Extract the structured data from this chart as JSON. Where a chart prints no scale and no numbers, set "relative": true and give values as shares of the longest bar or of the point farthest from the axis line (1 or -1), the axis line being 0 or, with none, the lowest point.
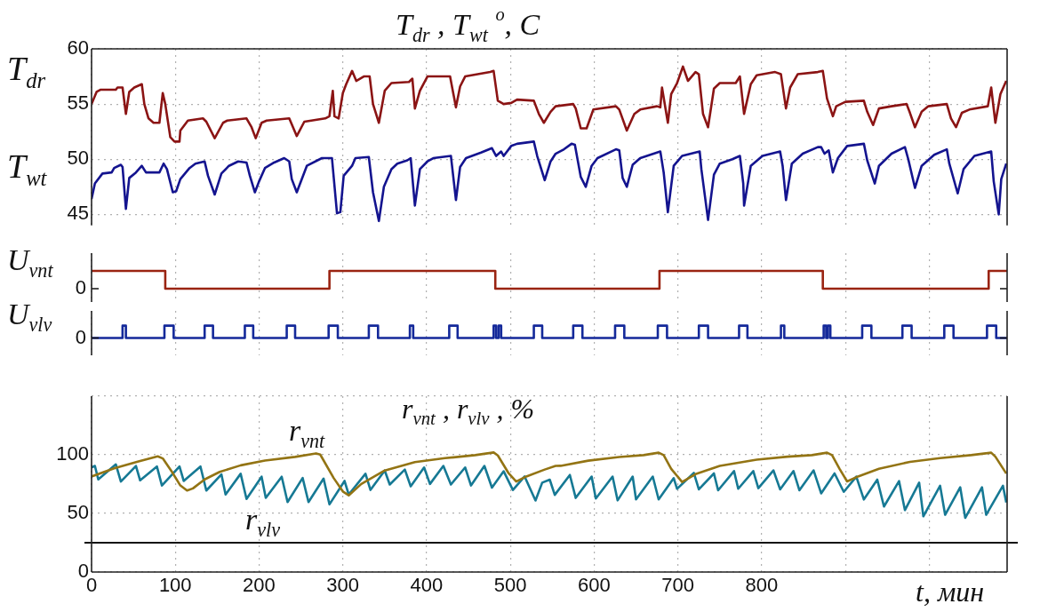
{
  "chart_data": [
    {
      "type": "line",
      "title": "T$_{dr}$ , T$_{wt}$ $^{o}$, C",
      "xlim": [
        0,
        1093
      ],
      "xticks": [
        0,
        100,
        200,
        300,
        400,
        500,
        600,
        700,
        800,
        900,
        1000
      ],
      "ylim": [
        44,
        60
      ],
      "yticks": [
        45,
        50,
        55,
        60
      ],
      "grid": true,
      "tick_labels": "y",
      "series": [
        {
          "name": "T$_{dr}$",
          "color": "#8b1414",
          "x": [
            0,
            6,
            11,
            29,
            31,
            37,
            41,
            45,
            51,
            60,
            63,
            68,
            74,
            81,
            85,
            88,
            94,
            99,
            105,
            106,
            115,
            133,
            137,
            147,
            157,
            162,
            185,
            191,
            196,
            203,
            209,
            236,
            245,
            254,
            279,
            284,
            288,
            290,
            295,
            300,
            304,
            311,
            316,
            325,
            332,
            336,
            343,
            350,
            358,
            379,
            383,
            386,
            392,
            401,
            428,
            435,
            440,
            446,
            476,
            480,
            485,
            492,
            501,
            508,
            528,
            534,
            540,
            548,
            554,
            575,
            578,
            584,
            591,
            599,
            626,
            630,
            639,
            648,
            655,
            675,
            679,
            681,
            688,
            692,
            699,
            706,
            712,
            721,
            725,
            730,
            736,
            743,
            750,
            769,
            774,
            779,
            787,
            794,
            816,
            823,
            829,
            834,
            843,
            867,
            873,
            878,
            885,
            889,
            900,
            922,
            926,
            933,
            940,
            955,
            973,
            977,
            983,
            991,
            999,
            1021,
            1026,
            1032,
            1039,
            1048,
            1070,
            1074,
            1079,
            1085,
            1092
          ],
          "values": [
            55.0,
            56.1,
            56.3,
            56.3,
            56.5,
            56.5,
            54.1,
            56.1,
            56.5,
            56.8,
            55.0,
            53.7,
            53.3,
            53.3,
            56.0,
            55.0,
            52.0,
            51.6,
            51.6,
            52.6,
            53.5,
            53.7,
            53.4,
            51.9,
            53.3,
            53.5,
            53.7,
            52.9,
            51.9,
            53.3,
            53.5,
            53.7,
            52.1,
            53.4,
            53.7,
            53.9,
            56.2,
            53.9,
            53.7,
            56.0,
            56.8,
            58.0,
            57.1,
            57.5,
            57.5,
            55.0,
            53.3,
            56.2,
            56.9,
            57.0,
            57.3,
            54.6,
            56.2,
            57.5,
            57.5,
            54.7,
            56.6,
            57.5,
            57.9,
            58.0,
            55.3,
            55.0,
            55.1,
            55.4,
            55.3,
            54.1,
            53.3,
            54.3,
            54.8,
            55.0,
            54.6,
            52.8,
            52.8,
            54.5,
            54.8,
            54.5,
            52.6,
            54.1,
            54.5,
            54.8,
            54.7,
            56.5,
            53.3,
            55.9,
            56.9,
            58.4,
            57.1,
            57.9,
            57.7,
            54.1,
            52.9,
            56.4,
            56.9,
            56.9,
            57.5,
            54.1,
            56.8,
            57.6,
            57.9,
            57.7,
            54.6,
            56.5,
            57.7,
            57.9,
            58.0,
            55.5,
            53.9,
            54.8,
            55.2,
            55.3,
            54.3,
            53.1,
            54.6,
            54.8,
            55.0,
            54.2,
            52.9,
            54.3,
            54.8,
            55.0,
            53.7,
            52.9,
            54.2,
            54.5,
            54.8,
            56.5,
            53.3,
            55.9,
            57.1
          ]
        },
        {
          "name": "T$_{wt}$",
          "color": "#14148f",
          "x": [
            0,
            4,
            13,
            24,
            27,
            35,
            37,
            41,
            45,
            53,
            60,
            65,
            81,
            86,
            90,
            97,
            101,
            106,
            117,
            124,
            135,
            139,
            147,
            155,
            164,
            175,
            185,
            189,
            195,
            200,
            207,
            218,
            230,
            236,
            239,
            245,
            257,
            275,
            287,
            293,
            297,
            301,
            311,
            315,
            331,
            336,
            343,
            349,
            358,
            365,
            377,
            381,
            386,
            392,
            401,
            408,
            429,
            435,
            440,
            447,
            465,
            478,
            483,
            489,
            492,
            501,
            508,
            528,
            532,
            541,
            548,
            554,
            564,
            573,
            577,
            584,
            590,
            597,
            604,
            626,
            630,
            634,
            639,
            646,
            655,
            679,
            683,
            688,
            695,
            705,
            726,
            728,
            736,
            743,
            750,
            765,
            774,
            778,
            779,
            787,
            801,
            822,
            825,
            829,
            836,
            849,
            867,
            871,
            875,
            880,
            885,
            891,
            902,
            922,
            926,
            935,
            940,
            955,
            971,
            975,
            983,
            991,
            1006,
            1021,
            1024,
            1034,
            1041,
            1054,
            1074,
            1077,
            1083,
            1086,
            1092
          ],
          "values": [
            46.4,
            47.8,
            48.7,
            48.8,
            49.2,
            49.5,
            49.3,
            45.5,
            48.3,
            48.8,
            49.4,
            48.8,
            48.8,
            49.6,
            49.1,
            47.0,
            47.1,
            48.2,
            49.2,
            49.6,
            49.8,
            48.5,
            46.8,
            48.7,
            49.4,
            49.8,
            49.7,
            48.5,
            47.0,
            48.0,
            49.2,
            49.7,
            50.1,
            49.8,
            48.2,
            47.0,
            49.4,
            50.1,
            50.1,
            45.1,
            45.2,
            48.5,
            49.4,
            50.1,
            50.2,
            47.0,
            44.4,
            47.5,
            49.1,
            49.6,
            49.9,
            50.1,
            45.8,
            49.1,
            49.8,
            50.1,
            50.3,
            46.3,
            49.3,
            50.1,
            50.6,
            51.0,
            50.3,
            50.7,
            50.3,
            51.2,
            51.4,
            51.6,
            50.3,
            48.1,
            49.8,
            50.5,
            50.9,
            51.4,
            51.3,
            48.4,
            47.5,
            49.4,
            50.1,
            50.9,
            50.8,
            48.3,
            47.5,
            49.5,
            50.1,
            50.7,
            48.8,
            45.2,
            49.4,
            50.3,
            50.7,
            49.1,
            44.5,
            48.6,
            49.6,
            50.0,
            50.3,
            47.8,
            45.8,
            49.4,
            50.3,
            50.7,
            49.4,
            46.3,
            49.6,
            50.5,
            51.1,
            51.1,
            50.5,
            50.8,
            48.8,
            50.1,
            51.2,
            51.4,
            49.9,
            47.8,
            49.4,
            50.5,
            51.1,
            50.0,
            47.4,
            49.4,
            50.4,
            50.9,
            49.6,
            46.9,
            49.1,
            50.3,
            50.7,
            48.0,
            45.0,
            48.2,
            49.6
          ]
        }
      ]
    },
    {
      "type": "step",
      "xlim": [
        0,
        1093
      ],
      "xticks": [
        0,
        100,
        200,
        300,
        400,
        500,
        600,
        700,
        800,
        900,
        1000
      ],
      "relative": true,
      "grid": "x",
      "tick_labels": false,
      "annotations": [
        "0"
      ],
      "series": [
        {
          "name": "U$_{vnt}$",
          "color": "#9a2412",
          "x": [
            0,
            88,
            284,
            482,
            678,
            873,
            1071,
            1093
          ],
          "values": [
            1,
            0,
            1,
            0,
            1,
            0,
            1,
            1
          ]
        }
      ]
    },
    {
      "type": "step",
      "xlim": [
        0,
        1093
      ],
      "xticks": [
        0,
        100,
        200,
        300,
        400,
        500,
        600,
        700,
        800,
        900,
        1000
      ],
      "relative": true,
      "grid": "x",
      "tick_labels": false,
      "annotations": [
        "0"
      ],
      "series": [
        {
          "name": "U$_{vlv}$",
          "color": "#14299a",
          "x": [
            0,
            37,
            41,
            87,
            98,
            135,
            145,
            183,
            193,
            233,
            243,
            283,
            294,
            331,
            342,
            380,
            384,
            427,
            437,
            480,
            483,
            486,
            489,
            528,
            538,
            575,
            586,
            625,
            636,
            676,
            687,
            725,
            736,
            773,
            783,
            823,
            827,
            874,
            877,
            879,
            882,
            920,
            931,
            968,
            979,
            1018,
            1029,
            1069,
            1080,
            1093
          ],
          "values": [
            0,
            1,
            0,
            1,
            0,
            1,
            0,
            1,
            0,
            1,
            0,
            1,
            0,
            1,
            0,
            1,
            0,
            1,
            0,
            1,
            0,
            1,
            0,
            1,
            0,
            1,
            0,
            1,
            0,
            1,
            0,
            1,
            0,
            1,
            0,
            1,
            0,
            1,
            0,
            1,
            0,
            1,
            0,
            1,
            0,
            1,
            0,
            1,
            0,
            0
          ]
        }
      ]
    },
    {
      "type": "line",
      "title": "r$_{vnt}$ , r$_{vlv}$ , %",
      "xlabel": "t, мин",
      "xlim": [
        0,
        1093
      ],
      "xticks": [
        0,
        100,
        200,
        300,
        400,
        500,
        600,
        700,
        800,
        {
          "value": 900,
          "label": null
        },
        {
          "value": 1000,
          "label": null
        }
      ],
      "ylim": [
        0,
        150
      ],
      "yticks": [
        0,
        50,
        100,
        {
          "value": 150,
          "label": null
        }
      ],
      "grid": true,
      "ref_lines": [
        {
          "axis": "y",
          "value": 25,
          "color": "#111111"
        }
      ],
      "series": [
        {
          "name": "r$_{vnt}$",
          "color": "#937414",
          "x": [
            0,
            27,
            56,
            79,
            85,
            96,
            106,
            114,
            121,
            135,
            153,
            178,
            207,
            243,
            268,
            273,
            289,
            300,
            307,
            322,
            350,
            386,
            422,
            458,
            480,
            485,
            498,
            507,
            519,
            541,
            554,
            560,
            593,
            630,
            659,
            677,
            683,
            692,
            705,
            721,
            750,
            794,
            831,
            860,
            878,
            884,
            893,
            902,
            915,
            940,
            977,
            1013,
            1050,
            1074,
            1079,
            1092
          ],
          "values": [
            81.5,
            88.4,
            94.3,
            98.7,
            96.9,
            85.4,
            73.8,
            69.5,
            71.3,
            79.0,
            85.4,
            91.0,
            95.1,
            98.2,
            101.2,
            100.2,
            80.2,
            68.7,
            65.4,
            75.1,
            86.6,
            93.8,
            97.1,
            99.7,
            102.0,
            99.4,
            84.1,
            77.2,
            81.5,
            87.4,
            90.5,
            90.6,
            95.0,
            98.1,
            99.7,
            101.8,
            99.7,
            88.0,
            76.8,
            83.5,
            90.6,
            95.8,
            98.4,
            99.7,
            101.8,
            99.7,
            88.0,
            77.3,
            81.5,
            88.0,
            94.0,
            97.1,
            99.7,
            101.8,
            98.4,
            84.0
          ]
        },
        {
          "name": "r$_{vlv}$",
          "color": "#167994",
          "x": [
            0,
            4,
            8,
            29,
            35,
            53,
            58,
            78,
            84,
            105,
            110,
            130,
            137,
            155,
            160,
            178,
            185,
            203,
            208,
            227,
            234,
            252,
            259,
            277,
            284,
            302,
            307,
            327,
            333,
            350,
            356,
            374,
            381,
            397,
            404,
            420,
            429,
            446,
            453,
            469,
            478,
            492,
            503,
            517,
            530,
            538,
            547,
            553,
            571,
            578,
            597,
            602,
            622,
            628,
            646,
            650,
            670,
            677,
            695,
            699,
            719,
            725,
            743,
            748,
            767,
            772,
            790,
            796,
            814,
            822,
            838,
            845,
            862,
            871,
            887,
            898,
            913,
            922,
            938,
            946,
            964,
            971,
            988,
            993,
            1013,
            1019,
            1037,
            1043,
            1063,
            1068,
            1088,
            1092
          ],
          "values": [
            89.2,
            90.5,
            79.0,
            91.8,
            77.2,
            90.5,
            78.2,
            90.0,
            73.8,
            90.0,
            77.7,
            90.0,
            69.5,
            83.3,
            66.1,
            83.8,
            62.3,
            81.3,
            63.3,
            81.3,
            59.7,
            80.2,
            59.7,
            79.7,
            57.7,
            77.7,
            66.1,
            83.8,
            70.0,
            86.6,
            74.6,
            87.4,
            73.1,
            89.2,
            75.1,
            90.5,
            74.6,
            89.2,
            73.8,
            90.5,
            72.0,
            85.9,
            70.0,
            81.5,
            61.0,
            76.2,
            78.8,
            65.8,
            82.8,
            63.2,
            81.4,
            62.7,
            81.4,
            61.1,
            81.4,
            61.9,
            81.4,
            61.9,
            80.1,
            71.0,
            84.6,
            70.5,
            84.1,
            69.7,
            86.1,
            71.0,
            86.1,
            71.5,
            86.7,
            70.5,
            86.1,
            69.7,
            86.7,
            67.1,
            84.1,
            68.4,
            81.4,
            61.9,
            78.8,
            55.9,
            77.5,
            52.8,
            76.2,
            47.5,
            73.6,
            48.8,
            72.3,
            46.2,
            72.3,
            48.8,
            73.6,
            59.3
          ]
        }
      ]
    }
  ]
}
